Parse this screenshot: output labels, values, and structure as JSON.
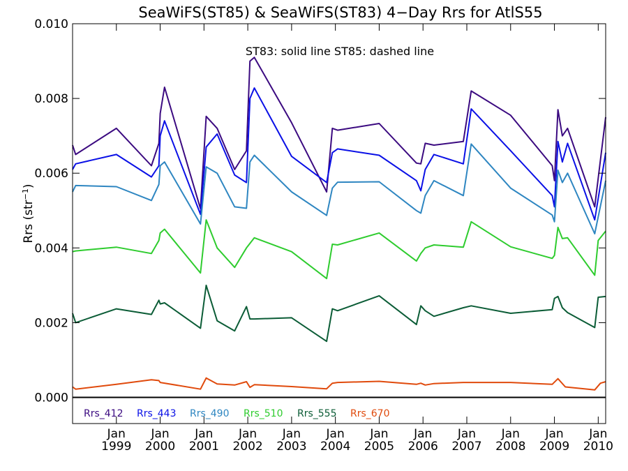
{
  "chart_data": {
    "type": "line",
    "title": "SeaWiFS(ST85) & SeaWiFS(ST83) 4−Day Rrs for AtlS55",
    "annotation": "ST83: solid line   ST85: dashed line",
    "ylabel": "Rrs (str",
    "ylabel_sup": "−1",
    "ylabel_close": ")",
    "ylim": [
      -0.0007,
      0.01
    ],
    "xlim": [
      1998.0,
      2010.17
    ],
    "yticks": [
      {
        "value": 0.0,
        "label": "0.000"
      },
      {
        "value": 0.002,
        "label": "0.002"
      },
      {
        "value": 0.004,
        "label": "0.004"
      },
      {
        "value": 0.006,
        "label": "0.006"
      },
      {
        "value": 0.008,
        "label": "0.008"
      },
      {
        "value": 0.01,
        "label": "0.010"
      }
    ],
    "xticks": [
      {
        "value": 1999.0,
        "month": "Jan",
        "year": "1999"
      },
      {
        "value": 2000.0,
        "month": "Jan",
        "year": "2000"
      },
      {
        "value": 2001.0,
        "month": "Jan",
        "year": "2001"
      },
      {
        "value": 2002.0,
        "month": "Jan",
        "year": "2002"
      },
      {
        "value": 2003.0,
        "month": "Jan",
        "year": "2003"
      },
      {
        "value": 2004.0,
        "month": "Jan",
        "year": "2004"
      },
      {
        "value": 2005.0,
        "month": "Jan",
        "year": "2005"
      },
      {
        "value": 2006.0,
        "month": "Jan",
        "year": "2006"
      },
      {
        "value": 2007.0,
        "month": "Jan",
        "year": "2007"
      },
      {
        "value": 2008.0,
        "month": "Jan",
        "year": "2008"
      },
      {
        "value": 2009.0,
        "month": "Jan",
        "year": "2009"
      },
      {
        "value": 2010.0,
        "month": "Jan",
        "year": "2010"
      }
    ],
    "zero_line": true,
    "series": [
      {
        "name": "Rrs_412",
        "color": "#3b0a80",
        "points": [
          [
            1998.0,
            0.00675
          ],
          [
            1998.07,
            0.0065
          ],
          [
            1999.0,
            0.0072
          ],
          [
            1999.8,
            0.0062
          ],
          [
            1999.97,
            0.0068
          ],
          [
            2000.0,
            0.0076
          ],
          [
            2000.1,
            0.0083
          ],
          [
            2000.92,
            0.00505
          ],
          [
            2001.05,
            0.00752
          ],
          [
            2001.3,
            0.0072
          ],
          [
            2001.7,
            0.0061
          ],
          [
            2001.97,
            0.0066
          ],
          [
            2002.05,
            0.009
          ],
          [
            2002.15,
            0.0091
          ],
          [
            2003.0,
            0.00735
          ],
          [
            2003.8,
            0.0055
          ],
          [
            2003.93,
            0.0072
          ],
          [
            2004.05,
            0.00715
          ],
          [
            2005.0,
            0.00733
          ],
          [
            2005.85,
            0.00627
          ],
          [
            2005.95,
            0.00625
          ],
          [
            2006.05,
            0.0068
          ],
          [
            2006.25,
            0.00675
          ],
          [
            2006.92,
            0.00685
          ],
          [
            2007.1,
            0.0082
          ],
          [
            2008.0,
            0.00755
          ],
          [
            2008.95,
            0.0062
          ],
          [
            2009.0,
            0.0058
          ],
          [
            2009.08,
            0.0077
          ],
          [
            2009.18,
            0.007
          ],
          [
            2009.3,
            0.0072
          ],
          [
            2009.92,
            0.0051
          ],
          [
            2010.17,
            0.0075
          ]
        ]
      },
      {
        "name": "Rrs_443",
        "color": "#0a10e6",
        "points": [
          [
            1998.0,
            0.0061
          ],
          [
            1998.07,
            0.00625
          ],
          [
            1999.0,
            0.0065
          ],
          [
            1999.8,
            0.0059
          ],
          [
            1999.97,
            0.0062
          ],
          [
            2000.0,
            0.007
          ],
          [
            2000.1,
            0.0074
          ],
          [
            2000.92,
            0.0049
          ],
          [
            2001.05,
            0.0067
          ],
          [
            2001.3,
            0.00705
          ],
          [
            2001.7,
            0.00595
          ],
          [
            2001.97,
            0.00575
          ],
          [
            2002.05,
            0.008
          ],
          [
            2002.15,
            0.00828
          ],
          [
            2003.0,
            0.00645
          ],
          [
            2003.8,
            0.00575
          ],
          [
            2003.93,
            0.00655
          ],
          [
            2004.05,
            0.00665
          ],
          [
            2005.0,
            0.00648
          ],
          [
            2005.85,
            0.0058
          ],
          [
            2005.95,
            0.00553
          ],
          [
            2006.05,
            0.0061
          ],
          [
            2006.25,
            0.0065
          ],
          [
            2006.92,
            0.00625
          ],
          [
            2007.1,
            0.00772
          ],
          [
            2008.0,
            0.0066
          ],
          [
            2008.95,
            0.0054
          ],
          [
            2009.0,
            0.0051
          ],
          [
            2009.08,
            0.00685
          ],
          [
            2009.18,
            0.0063
          ],
          [
            2009.3,
            0.0068
          ],
          [
            2009.92,
            0.00475
          ],
          [
            2010.17,
            0.00655
          ]
        ]
      },
      {
        "name": "Rrs_490",
        "color": "#2e86c1",
        "points": [
          [
            1998.0,
            0.0055
          ],
          [
            1998.07,
            0.00567
          ],
          [
            1999.0,
            0.00564
          ],
          [
            1999.8,
            0.00527
          ],
          [
            1999.97,
            0.0057
          ],
          [
            2000.0,
            0.0062
          ],
          [
            2000.1,
            0.0063
          ],
          [
            2000.92,
            0.00464
          ],
          [
            2001.05,
            0.00617
          ],
          [
            2001.3,
            0.006
          ],
          [
            2001.7,
            0.0051
          ],
          [
            2001.97,
            0.00506
          ],
          [
            2002.05,
            0.0063
          ],
          [
            2002.15,
            0.00648
          ],
          [
            2003.0,
            0.0055
          ],
          [
            2003.8,
            0.00487
          ],
          [
            2003.93,
            0.0056
          ],
          [
            2004.05,
            0.00576
          ],
          [
            2005.0,
            0.00577
          ],
          [
            2005.85,
            0.005
          ],
          [
            2005.95,
            0.00493
          ],
          [
            2006.05,
            0.0054
          ],
          [
            2006.25,
            0.0058
          ],
          [
            2006.92,
            0.0054
          ],
          [
            2007.1,
            0.00678
          ],
          [
            2008.0,
            0.0056
          ],
          [
            2008.95,
            0.00488
          ],
          [
            2009.0,
            0.0047
          ],
          [
            2009.08,
            0.00608
          ],
          [
            2009.18,
            0.00575
          ],
          [
            2009.3,
            0.006
          ],
          [
            2009.92,
            0.00438
          ],
          [
            2010.17,
            0.0058
          ]
        ]
      },
      {
        "name": "Rrs_510",
        "color": "#2ecc2e",
        "points": [
          [
            1998.0,
            0.0039
          ],
          [
            1998.07,
            0.00392
          ],
          [
            1999.0,
            0.00402
          ],
          [
            1999.8,
            0.00385
          ],
          [
            1999.97,
            0.0042
          ],
          [
            2000.0,
            0.0044
          ],
          [
            2000.1,
            0.0045
          ],
          [
            2000.92,
            0.00333
          ],
          [
            2001.05,
            0.00475
          ],
          [
            2001.3,
            0.004
          ],
          [
            2001.7,
            0.00348
          ],
          [
            2001.97,
            0.004
          ],
          [
            2002.15,
            0.00427
          ],
          [
            2003.0,
            0.0039
          ],
          [
            2003.8,
            0.00318
          ],
          [
            2003.93,
            0.0041
          ],
          [
            2004.05,
            0.00408
          ],
          [
            2005.0,
            0.0044
          ],
          [
            2005.85,
            0.00365
          ],
          [
            2005.95,
            0.00385
          ],
          [
            2006.05,
            0.004
          ],
          [
            2006.25,
            0.00408
          ],
          [
            2006.92,
            0.00402
          ],
          [
            2007.1,
            0.0047
          ],
          [
            2008.0,
            0.00403
          ],
          [
            2008.95,
            0.00372
          ],
          [
            2009.0,
            0.0038
          ],
          [
            2009.08,
            0.00455
          ],
          [
            2009.18,
            0.00425
          ],
          [
            2009.3,
            0.00427
          ],
          [
            2009.92,
            0.00327
          ],
          [
            2010.0,
            0.0042
          ],
          [
            2010.17,
            0.00445
          ]
        ]
      },
      {
        "name": "Rrs_555",
        "color": "#0b5c36",
        "points": [
          [
            1998.0,
            0.00225
          ],
          [
            1998.07,
            0.002
          ],
          [
            1999.0,
            0.00237
          ],
          [
            1999.8,
            0.00222
          ],
          [
            1999.97,
            0.0026
          ],
          [
            2000.0,
            0.0025
          ],
          [
            2000.1,
            0.00253
          ],
          [
            2000.92,
            0.00185
          ],
          [
            2001.05,
            0.003
          ],
          [
            2001.3,
            0.00205
          ],
          [
            2001.7,
            0.00178
          ],
          [
            2001.97,
            0.00243
          ],
          [
            2002.05,
            0.0021
          ],
          [
            2002.15,
            0.0021
          ],
          [
            2003.0,
            0.00213
          ],
          [
            2003.8,
            0.0015
          ],
          [
            2003.93,
            0.00237
          ],
          [
            2004.05,
            0.00232
          ],
          [
            2005.0,
            0.00272
          ],
          [
            2005.85,
            0.00195
          ],
          [
            2005.95,
            0.00245
          ],
          [
            2006.05,
            0.00232
          ],
          [
            2006.25,
            0.00217
          ],
          [
            2006.92,
            0.0024
          ],
          [
            2007.1,
            0.00245
          ],
          [
            2008.0,
            0.00225
          ],
          [
            2008.95,
            0.00235
          ],
          [
            2009.0,
            0.00265
          ],
          [
            2009.08,
            0.0027
          ],
          [
            2009.18,
            0.0024
          ],
          [
            2009.3,
            0.00227
          ],
          [
            2009.92,
            0.00187
          ],
          [
            2010.0,
            0.00268
          ],
          [
            2010.17,
            0.0027
          ]
        ]
      },
      {
        "name": "Rrs_670",
        "color": "#e04a0c",
        "points": [
          [
            1998.0,
            0.00028
          ],
          [
            1998.07,
            0.00022
          ],
          [
            1999.0,
            0.00035
          ],
          [
            1999.8,
            0.00047
          ],
          [
            1999.97,
            0.00045
          ],
          [
            2000.0,
            0.0004
          ],
          [
            2000.92,
            0.00022
          ],
          [
            2001.05,
            0.00052
          ],
          [
            2001.3,
            0.00036
          ],
          [
            2001.7,
            0.00033
          ],
          [
            2001.97,
            0.00042
          ],
          [
            2002.05,
            0.00027
          ],
          [
            2002.15,
            0.00034
          ],
          [
            2003.0,
            0.00029
          ],
          [
            2003.8,
            0.00023
          ],
          [
            2003.93,
            0.00038
          ],
          [
            2004.05,
            0.0004
          ],
          [
            2005.0,
            0.00043
          ],
          [
            2005.85,
            0.00035
          ],
          [
            2005.95,
            0.00038
          ],
          [
            2006.05,
            0.00033
          ],
          [
            2006.25,
            0.00037
          ],
          [
            2006.92,
            0.0004
          ],
          [
            2008.0,
            0.0004
          ],
          [
            2008.95,
            0.00035
          ],
          [
            2009.08,
            0.0005
          ],
          [
            2009.25,
            0.00028
          ],
          [
            2009.92,
            0.0002
          ],
          [
            2010.05,
            0.00038
          ],
          [
            2010.17,
            0.00042
          ]
        ]
      }
    ]
  }
}
